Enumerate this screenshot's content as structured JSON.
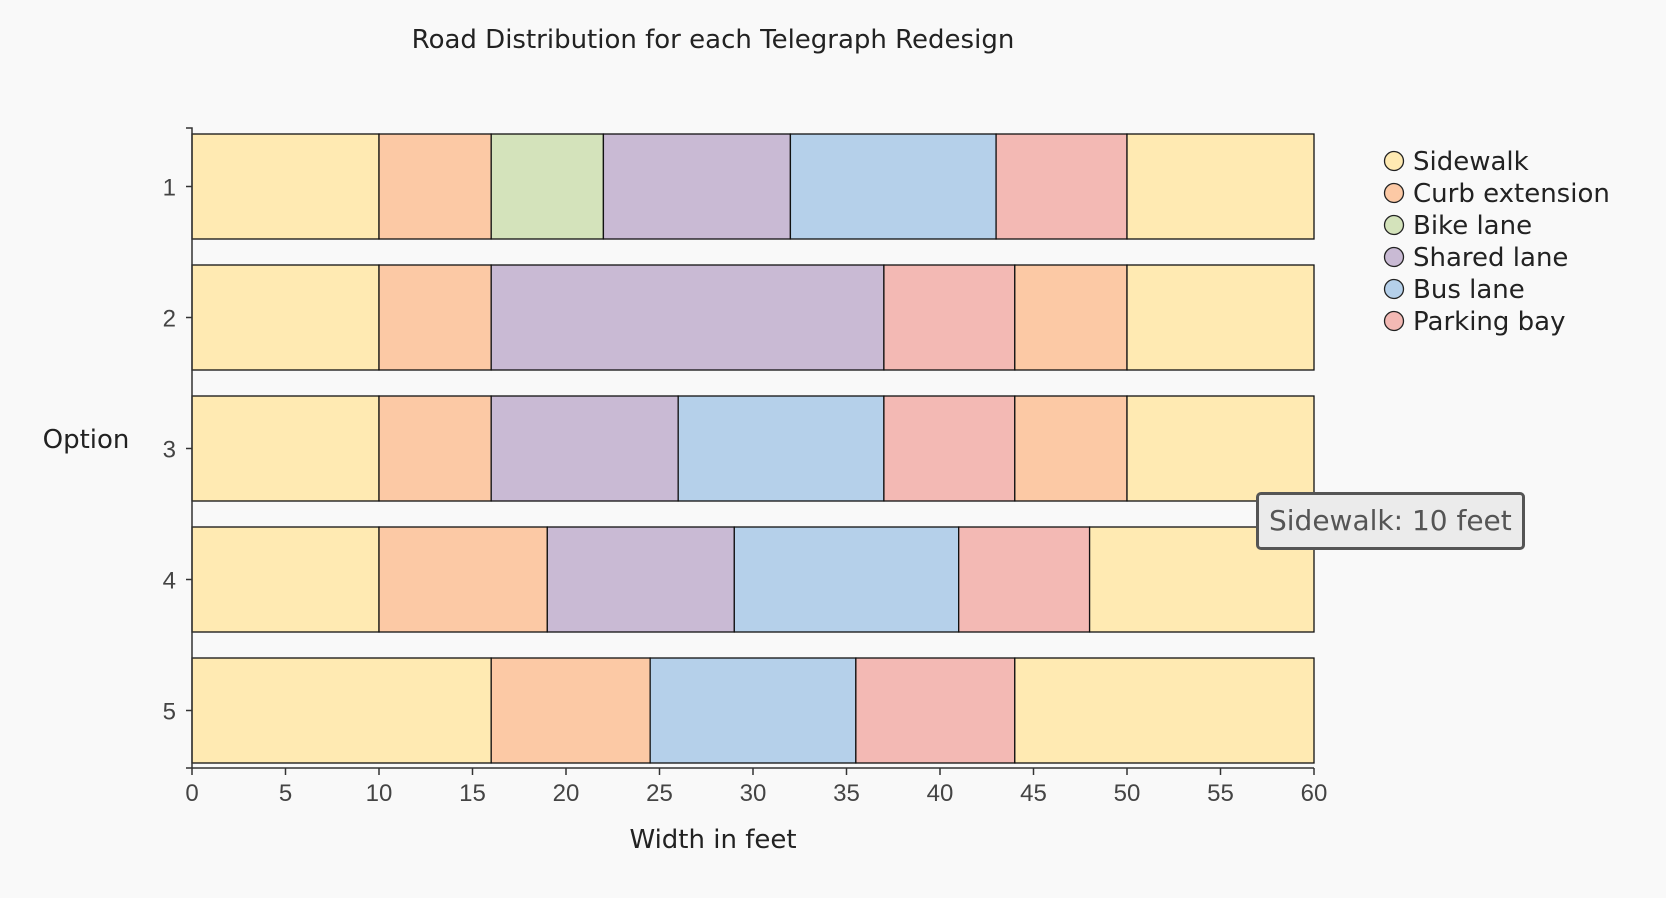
{
  "chart_data": {
    "type": "bar",
    "orientation": "horizontal",
    "stacked": true,
    "title": "Road Distribution for each Telegraph Redesign",
    "xlabel": "Width in feet",
    "ylabel": "Option",
    "xlim": [
      0,
      60
    ],
    "xticks": [
      "0",
      "5",
      "10",
      "15",
      "20",
      "25",
      "30",
      "35",
      "40",
      "45",
      "50",
      "55",
      "60"
    ],
    "categories": [
      "1",
      "2",
      "3",
      "4",
      "5"
    ],
    "segment_types": [
      {
        "name": "Sidewalk",
        "color": "#ffeab2"
      },
      {
        "name": "Curb extension",
        "color": "#fcc9a5"
      },
      {
        "name": "Bike lane",
        "color": "#d4e3bb"
      },
      {
        "name": "Shared lane",
        "color": "#c9bad4"
      },
      {
        "name": "Bus lane",
        "color": "#b5d0ea"
      },
      {
        "name": "Parking bay",
        "color": "#f3b9b4"
      }
    ],
    "rows": [
      {
        "option": "1",
        "segments": [
          {
            "type": "Sidewalk",
            "width": 10
          },
          {
            "type": "Curb extension",
            "width": 6
          },
          {
            "type": "Bike lane",
            "width": 6
          },
          {
            "type": "Shared lane",
            "width": 10
          },
          {
            "type": "Bus lane",
            "width": 11
          },
          {
            "type": "Parking bay",
            "width": 7
          },
          {
            "type": "Sidewalk",
            "width": 10
          }
        ]
      },
      {
        "option": "2",
        "segments": [
          {
            "type": "Sidewalk",
            "width": 10
          },
          {
            "type": "Curb extension",
            "width": 6
          },
          {
            "type": "Shared lane",
            "width": 21
          },
          {
            "type": "Parking bay",
            "width": 7
          },
          {
            "type": "Curb extension",
            "width": 6
          },
          {
            "type": "Sidewalk",
            "width": 10
          }
        ]
      },
      {
        "option": "3",
        "segments": [
          {
            "type": "Sidewalk",
            "width": 10
          },
          {
            "type": "Curb extension",
            "width": 6
          },
          {
            "type": "Shared lane",
            "width": 10
          },
          {
            "type": "Bus lane",
            "width": 11
          },
          {
            "type": "Parking bay",
            "width": 7
          },
          {
            "type": "Curb extension",
            "width": 6
          },
          {
            "type": "Sidewalk",
            "width": 10
          }
        ]
      },
      {
        "option": "4",
        "segments": [
          {
            "type": "Sidewalk",
            "width": 10
          },
          {
            "type": "Curb extension",
            "width": 9
          },
          {
            "type": "Shared lane",
            "width": 10
          },
          {
            "type": "Bus lane",
            "width": 12
          },
          {
            "type": "Parking bay",
            "width": 7
          },
          {
            "type": "Sidewalk",
            "width": 12
          }
        ]
      },
      {
        "option": "5",
        "segments": [
          {
            "type": "Sidewalk",
            "width": 16
          },
          {
            "type": "Curb extension",
            "width": 8.5
          },
          {
            "type": "Bus lane",
            "width": 11
          },
          {
            "type": "Parking bay",
            "width": 8.5
          },
          {
            "type": "Sidewalk",
            "width": 16
          }
        ]
      }
    ],
    "legend": [
      "Sidewalk",
      "Curb extension",
      "Bike lane",
      "Shared lane",
      "Bus lane",
      "Parking bay"
    ],
    "legend_position": "top-right",
    "grid": false
  },
  "tooltip": {
    "text": "Sidewalk: 10 feet"
  }
}
